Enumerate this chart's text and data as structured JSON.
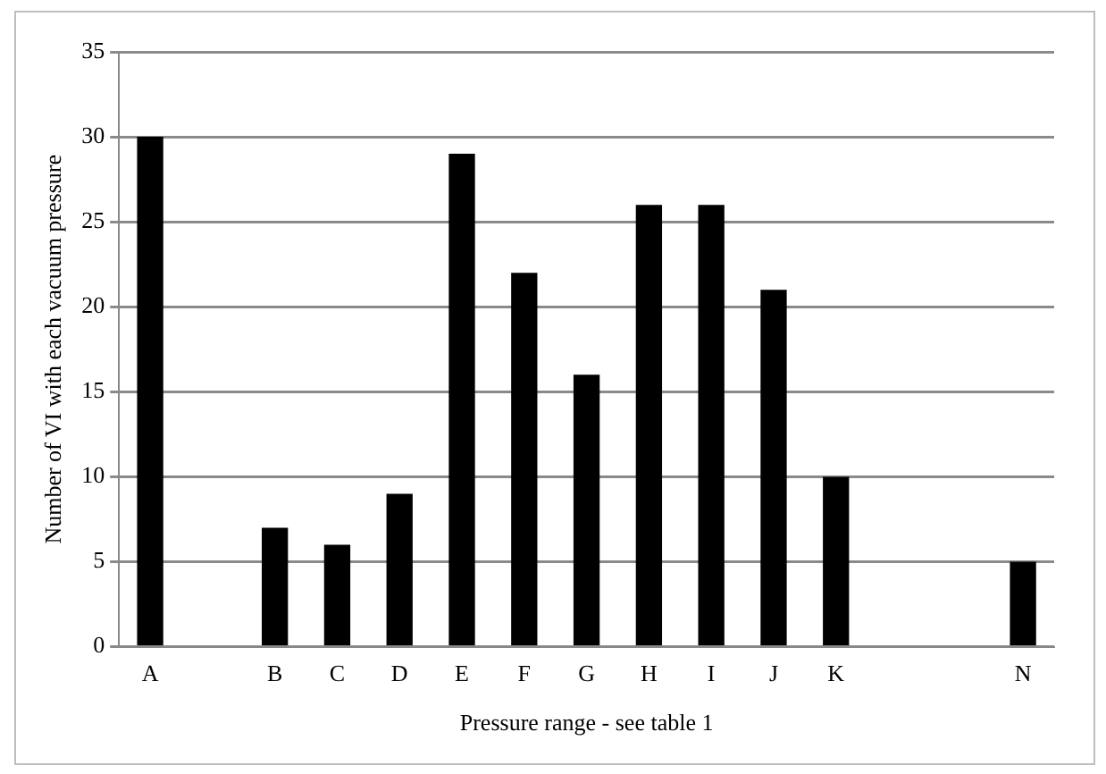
{
  "chart_data": {
    "type": "bar",
    "xlabel": "Pressure range - see table 1",
    "ylabel": "Number of VI with each vacuum pressure",
    "categories": [
      "A",
      null,
      "B",
      "C",
      "D",
      "E",
      "F",
      "G",
      "H",
      "I",
      "J",
      "K",
      null,
      null,
      "N"
    ],
    "values": [
      30,
      null,
      7,
      6,
      9,
      29,
      22,
      16,
      26,
      26,
      21,
      10,
      null,
      null,
      5
    ],
    "color": "#000000",
    "ylim": [
      0,
      35
    ],
    "yticks": [
      0,
      5,
      10,
      15,
      20,
      25,
      30,
      35
    ],
    "grid": "y",
    "legend": false
  }
}
